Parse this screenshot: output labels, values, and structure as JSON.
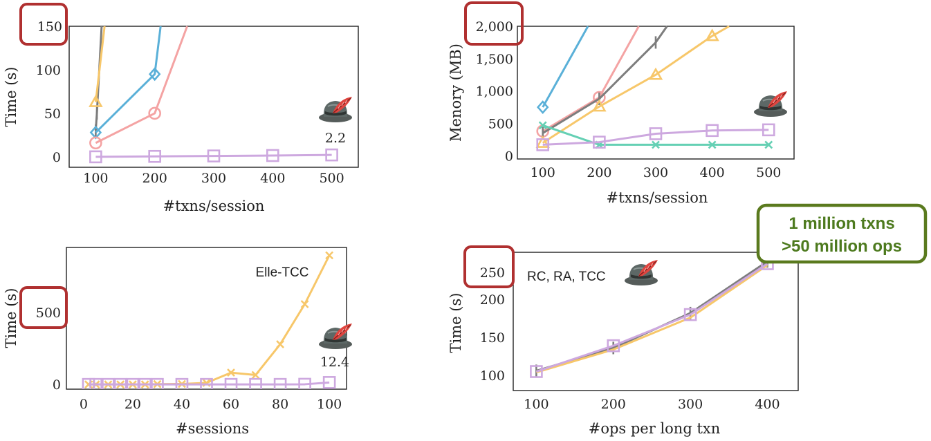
{
  "callout": {
    "line1": "1 million txns",
    "line2": ">50 million ops"
  },
  "charts": {
    "time_txns": {
      "highlight": "150",
      "plain_ticks": [
        "0",
        "50",
        "100"
      ]
    },
    "mem_txns": {
      "highlight": "2,000"
    },
    "time_sessions": {
      "highlight": "500"
    },
    "time_ops": {
      "highlight": "250"
    }
  },
  "colors": {
    "yellow": "#f7c76a",
    "gray": "#7d7d7d",
    "blue": "#5ab0d8",
    "pink": "#f4a3a3",
    "purple": "#cda8df",
    "teal": "#65d0b4",
    "red_box": "#b03030",
    "callout_green": "#5a7a1e"
  },
  "chart_data": [
    {
      "type": "line",
      "xlabel": "#txns/session",
      "ylabel": "Time (s)",
      "x_ticks": [
        100,
        200,
        300,
        400,
        500
      ],
      "y_ticks": [
        0,
        50,
        100,
        150
      ],
      "xlim": [
        55,
        545
      ],
      "ylim": [
        -12,
        150
      ],
      "annotation": "2.2",
      "series": [
        {
          "color": "#7d7d7d",
          "marker": "errorbar",
          "points": [
            [
              100,
              30
            ],
            [
              102,
              50
            ],
            [
              110,
              150
            ]
          ]
        },
        {
          "color": "#f7c76a",
          "marker": "triangle",
          "points": [
            [
              100,
              63
            ],
            [
              115,
              150
            ]
          ]
        },
        {
          "color": "#5ab0d8",
          "marker": "diamond",
          "points": [
            [
              100,
              28
            ],
            [
              200,
              95
            ],
            [
              210,
              150
            ]
          ]
        },
        {
          "color": "#f4a3a3",
          "marker": "circle",
          "points": [
            [
              100,
              16
            ],
            [
              200,
              50
            ],
            [
              255,
              150
            ]
          ]
        },
        {
          "color": "#cda8df",
          "marker": "square",
          "points": [
            [
              100,
              0
            ],
            [
              200,
              0.5
            ],
            [
              300,
              1
            ],
            [
              400,
              1.5
            ],
            [
              500,
              2.2
            ]
          ]
        }
      ]
    },
    {
      "type": "line",
      "xlabel": "#txns/session",
      "ylabel": "Menory (MB)",
      "x_ticks": [
        100,
        200,
        300,
        400,
        500
      ],
      "y_ticks": [
        0,
        500,
        1000,
        1500,
        2000
      ],
      "y_tick_labels": [
        "0",
        "500",
        "1,000",
        "1,500",
        "2,000"
      ],
      "xlim": [
        55,
        545
      ],
      "ylim": [
        -50,
        2000
      ],
      "series": [
        {
          "color": "#5ab0d8",
          "marker": "diamond",
          "points": [
            [
              100,
              750
            ],
            [
              180,
              2000
            ]
          ]
        },
        {
          "color": "#f4a3a3",
          "marker": "circle",
          "points": [
            [
              100,
              380
            ],
            [
              200,
              900
            ],
            [
              270,
              2000
            ]
          ]
        },
        {
          "color": "#7d7d7d",
          "marker": "errorbar",
          "points": [
            [
              100,
              350
            ],
            [
              200,
              880
            ],
            [
              300,
              1750
            ],
            [
              320,
              2000
            ]
          ]
        },
        {
          "color": "#f7c76a",
          "marker": "triangle",
          "points": [
            [
              100,
              200
            ],
            [
              200,
              760
            ],
            [
              300,
              1250
            ],
            [
              400,
              1850
            ],
            [
              430,
              2000
            ]
          ]
        },
        {
          "color": "#65d0b4",
          "marker": "x",
          "points": [
            [
              100,
              470
            ],
            [
              200,
              170
            ],
            [
              300,
              170
            ],
            [
              400,
              170
            ],
            [
              500,
              170
            ]
          ]
        },
        {
          "color": "#cda8df",
          "marker": "square",
          "points": [
            [
              100,
              170
            ],
            [
              200,
              210
            ],
            [
              300,
              340
            ],
            [
              400,
              390
            ],
            [
              500,
              400
            ]
          ]
        }
      ]
    },
    {
      "type": "line",
      "xlabel": "#sessions",
      "ylabel": "Time (s)",
      "x_ticks": [
        0,
        20,
        40,
        60,
        80,
        100
      ],
      "y_ticks": [
        0,
        500
      ],
      "xlim": [
        -7,
        107
      ],
      "ylim": [
        -30,
        870
      ],
      "annotation": "12.4",
      "series_label": "Elle-TCC",
      "series": [
        {
          "color": "#f7c76a",
          "marker": "x",
          "points": [
            [
              2,
              0
            ],
            [
              5,
              0
            ],
            [
              10,
              0
            ],
            [
              15,
              0
            ],
            [
              20,
              0
            ],
            [
              25,
              0
            ],
            [
              30,
              2
            ],
            [
              40,
              3
            ],
            [
              50,
              10
            ],
            [
              60,
              75
            ],
            [
              70,
              60
            ],
            [
              80,
              255
            ],
            [
              90,
              510
            ],
            [
              100,
              820
            ]
          ]
        },
        {
          "color": "#cda8df",
          "marker": "square",
          "points": [
            [
              2,
              0
            ],
            [
              5,
              0
            ],
            [
              10,
              0
            ],
            [
              15,
              0
            ],
            [
              20,
              0
            ],
            [
              25,
              0
            ],
            [
              30,
              0
            ],
            [
              40,
              0
            ],
            [
              50,
              0
            ],
            [
              60,
              0
            ],
            [
              70,
              0
            ],
            [
              80,
              0
            ],
            [
              90,
              1
            ],
            [
              100,
              12.4
            ]
          ]
        }
      ]
    },
    {
      "type": "line",
      "xlabel": "#ops per long txn",
      "ylabel": "Time (s)",
      "x_ticks": [
        100,
        200,
        300,
        400
      ],
      "y_ticks": [
        100,
        150,
        200,
        250
      ],
      "xlim": [
        70,
        440
      ],
      "ylim": [
        80,
        262
      ],
      "series_label": "RC, RA, TCC",
      "series": [
        {
          "color": "#7d7d7d",
          "marker": "errorbar",
          "points": [
            [
              100,
              106
            ],
            [
              200,
              136
            ],
            [
              300,
              182
            ],
            [
              400,
              250
            ]
          ]
        },
        {
          "color": "#f7c76a",
          "marker": "none",
          "points": [
            [
              100,
              104
            ],
            [
              200,
              134
            ],
            [
              300,
              176
            ],
            [
              400,
              245
            ]
          ]
        },
        {
          "color": "#cda8df",
          "marker": "square",
          "points": [
            [
              100,
              105
            ],
            [
              200,
              139
            ],
            [
              300,
              180
            ],
            [
              400,
              247
            ]
          ]
        }
      ]
    }
  ]
}
